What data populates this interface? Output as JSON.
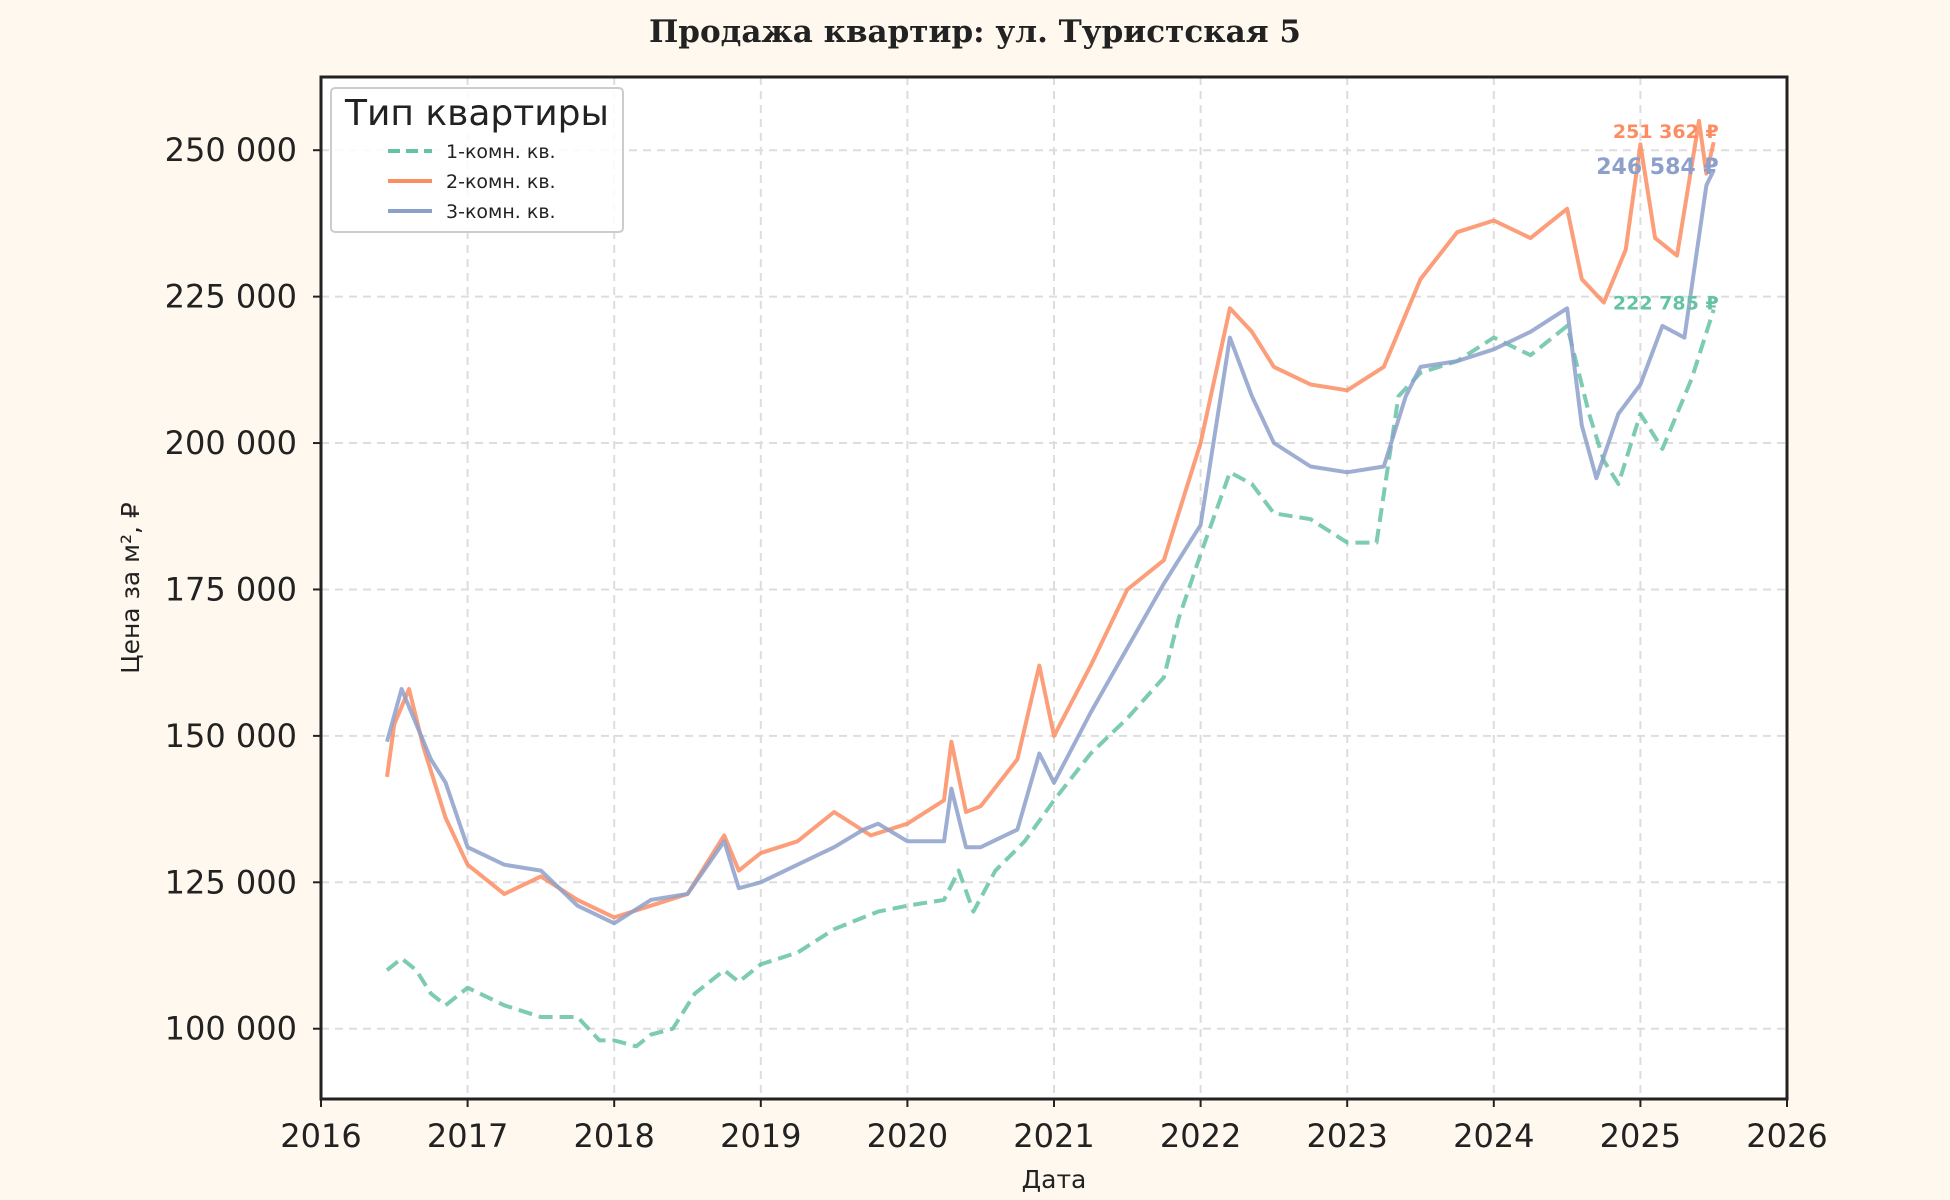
{
  "chart_data": {
    "type": "line",
    "title": "Продажа квартир: ул. Туристская 5",
    "xlabel": "Дата",
    "ylabel": "Цена за м², ₽",
    "xlim": [
      2016,
      2026
    ],
    "ylim": [
      88000,
      262500
    ],
    "x_ticks": [
      "2016",
      "2017",
      "2018",
      "2019",
      "2020",
      "2021",
      "2022",
      "2023",
      "2024",
      "2025",
      "2026"
    ],
    "y_ticks": [
      {
        "value": 100000,
        "label": "100 000"
      },
      {
        "value": 125000,
        "label": "125 000"
      },
      {
        "value": 150000,
        "label": "150 000"
      },
      {
        "value": 175000,
        "label": "175 000"
      },
      {
        "value": 200000,
        "label": "200 000"
      },
      {
        "value": 225000,
        "label": "225 000"
      },
      {
        "value": 250000,
        "label": "250 000"
      }
    ],
    "grid": true,
    "legend": {
      "title": "Тип квартиры",
      "position": "top-left"
    },
    "series": [
      {
        "name": "1-комн. кв.",
        "color": "#66c2a5",
        "dash": "dashed",
        "end_label": "222 785 ₽",
        "x": [
          2016.45,
          2016.55,
          2016.65,
          2016.75,
          2016.85,
          2017.0,
          2017.25,
          2017.5,
          2017.75,
          2017.9,
          2018.0,
          2018.15,
          2018.25,
          2018.4,
          2018.55,
          2018.75,
          2018.85,
          2019.0,
          2019.25,
          2019.5,
          2019.7,
          2019.8,
          2020.0,
          2020.25,
          2020.35,
          2020.45,
          2020.6,
          2020.8,
          2021.0,
          2021.25,
          2021.5,
          2021.75,
          2021.85,
          2022.0,
          2022.2,
          2022.35,
          2022.5,
          2022.75,
          2023.0,
          2023.2,
          2023.35,
          2023.5,
          2023.75,
          2024.0,
          2024.25,
          2024.5,
          2024.65,
          2024.75,
          2024.85,
          2025.0,
          2025.15,
          2025.35,
          2025.5
        ],
        "y": [
          110000,
          112000,
          110000,
          106000,
          104000,
          107000,
          104000,
          102000,
          102000,
          98000,
          98000,
          97000,
          99000,
          100000,
          106000,
          110000,
          108000,
          111000,
          113000,
          117000,
          119000,
          120000,
          121000,
          122000,
          127000,
          120000,
          127000,
          132000,
          139000,
          147000,
          153000,
          160000,
          170000,
          181000,
          195000,
          193000,
          188000,
          187000,
          183000,
          183000,
          208000,
          212000,
          214000,
          218000,
          215000,
          220000,
          205000,
          197000,
          193000,
          205000,
          199000,
          211000,
          222785
        ]
      },
      {
        "name": "2-комн. кв.",
        "color": "#fc8d62",
        "dash": "solid",
        "end_label": "251 362 ₽",
        "x": [
          2016.45,
          2016.5,
          2016.6,
          2016.7,
          2016.85,
          2017.0,
          2017.25,
          2017.5,
          2017.75,
          2018.0,
          2018.25,
          2018.5,
          2018.75,
          2018.85,
          2019.0,
          2019.25,
          2019.5,
          2019.75,
          2020.0,
          2020.25,
          2020.3,
          2020.4,
          2020.5,
          2020.75,
          2020.9,
          2021.0,
          2021.25,
          2021.5,
          2021.75,
          2022.0,
          2022.2,
          2022.35,
          2022.5,
          2022.75,
          2023.0,
          2023.25,
          2023.5,
          2023.75,
          2024.0,
          2024.25,
          2024.5,
          2024.6,
          2024.75,
          2024.9,
          2025.0,
          2025.1,
          2025.25,
          2025.4,
          2025.45,
          2025.5
        ],
        "y": [
          143000,
          152000,
          158000,
          148000,
          136000,
          128000,
          123000,
          126000,
          122000,
          119000,
          121000,
          123000,
          133000,
          127000,
          130000,
          132000,
          137000,
          133000,
          135000,
          139000,
          149000,
          137000,
          138000,
          146000,
          162000,
          150000,
          162000,
          175000,
          180000,
          200000,
          223000,
          219000,
          213000,
          210000,
          209000,
          213000,
          228000,
          236000,
          238000,
          235000,
          240000,
          228000,
          224000,
          233000,
          251000,
          235000,
          232000,
          255000,
          246000,
          251362
        ]
      },
      {
        "name": "3-комн. кв.",
        "color": "#8da0cb",
        "dash": "solid",
        "end_label": "246 584 ₽",
        "x": [
          2016.45,
          2016.55,
          2016.65,
          2016.75,
          2016.85,
          2017.0,
          2017.25,
          2017.5,
          2017.75,
          2018.0,
          2018.25,
          2018.5,
          2018.75,
          2018.85,
          2019.0,
          2019.25,
          2019.5,
          2019.7,
          2019.8,
          2020.0,
          2020.25,
          2020.3,
          2020.4,
          2020.5,
          2020.75,
          2020.9,
          2021.0,
          2021.25,
          2021.5,
          2021.75,
          2022.0,
          2022.2,
          2022.35,
          2022.5,
          2022.75,
          2023.0,
          2023.25,
          2023.4,
          2023.5,
          2023.75,
          2024.0,
          2024.25,
          2024.5,
          2024.6,
          2024.7,
          2024.85,
          2025.0,
          2025.15,
          2025.3,
          2025.45,
          2025.5
        ],
        "y": [
          149000,
          158000,
          152000,
          146000,
          142000,
          131000,
          128000,
          127000,
          121000,
          118000,
          122000,
          123000,
          132000,
          124000,
          125000,
          128000,
          131000,
          134000,
          135000,
          132000,
          132000,
          141000,
          131000,
          131000,
          134000,
          147000,
          142000,
          154000,
          165000,
          176000,
          186000,
          218000,
          208000,
          200000,
          196000,
          195000,
          196000,
          208000,
          213000,
          214000,
          216000,
          219000,
          223000,
          203000,
          194000,
          205000,
          210000,
          220000,
          218000,
          244000,
          246584
        ]
      }
    ]
  }
}
